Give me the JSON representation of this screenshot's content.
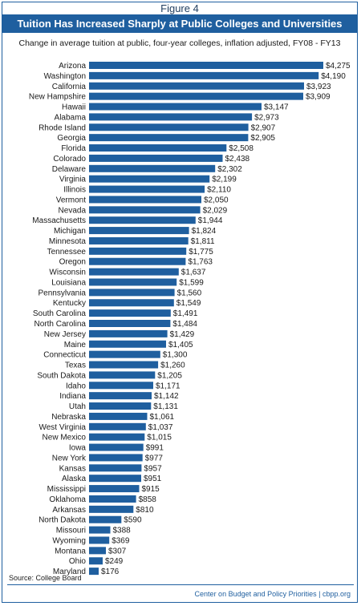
{
  "figure_label": "Figure 4",
  "title": "Tuition Has Increased Sharply at Public Colleges and Universities",
  "subtitle": "Change in average tuition at public, four-year colleges, inflation adjusted, FY08 - FY13",
  "source": "Source: College Board",
  "footer": "Center on Budget and Policy Priorities | cbpp.org",
  "colors": {
    "bar": "#1f5f9f",
    "title_bg": "#1f5f9f",
    "title_text": "#ffffff"
  },
  "chart_data": {
    "type": "bar",
    "orientation": "horizontal",
    "categories": [
      "Arizona",
      "Washington",
      "California",
      "New Hampshire",
      "Hawaii",
      "Alabama",
      "Rhode Island",
      "Georgia",
      "Florida",
      "Colorado",
      "Delaware",
      "Virginia",
      "Illinois",
      "Vermont",
      "Nevada",
      "Massachusetts",
      "Michigan",
      "Minnesota",
      "Tennessee",
      "Oregon",
      "Wisconsin",
      "Louisiana",
      "Pennsylvania",
      "Kentucky",
      "South Carolina",
      "North Carolina",
      "New Jersey",
      "Maine",
      "Connecticut",
      "Texas",
      "South Dakota",
      "Idaho",
      "Indiana",
      "Utah",
      "Nebraska",
      "West Virginia",
      "New Mexico",
      "Iowa",
      "New York",
      "Kansas",
      "Alaska",
      "Mississippi",
      "Oklahoma",
      "Arkansas",
      "North Dakota",
      "Missouri",
      "Wyoming",
      "Montana",
      "Ohio",
      "Maryland"
    ],
    "values": [
      4275,
      4190,
      3923,
      3909,
      3147,
      2973,
      2907,
      2905,
      2508,
      2438,
      2302,
      2199,
      2110,
      2050,
      2029,
      1944,
      1824,
      1811,
      1775,
      1763,
      1637,
      1599,
      1560,
      1549,
      1491,
      1484,
      1429,
      1405,
      1300,
      1260,
      1205,
      1171,
      1142,
      1131,
      1061,
      1037,
      1015,
      991,
      977,
      957,
      951,
      915,
      858,
      810,
      590,
      388,
      369,
      307,
      249,
      176
    ],
    "value_labels": [
      "$4,275",
      "$4,190",
      "$3,923",
      "$3,909",
      "$3,147",
      "$2,973",
      "$2,907",
      "$2,905",
      "$2,508",
      "$2,438",
      "$2,302",
      "$2,199",
      "$2,110",
      "$2,050",
      "$2,029",
      "$1,944",
      "$1,824",
      "$1,811",
      "$1,775",
      "$1,763",
      "$1,637",
      "$1,599",
      "$1,560",
      "$1,549",
      "$1,491",
      "$1,484",
      "$1,429",
      "$1,405",
      "$1,300",
      "$1,260",
      "$1,205",
      "$1,171",
      "$1,142",
      "$1,131",
      "$1,061",
      "$1,037",
      "$1,015",
      "$991",
      "$977",
      "$957",
      "$951",
      "$915",
      "$858",
      "$810",
      "$590",
      "$388",
      "$369",
      "$307",
      "$249",
      "$176"
    ],
    "xlim": [
      0,
      4275
    ],
    "grid": false,
    "legend": "none"
  }
}
